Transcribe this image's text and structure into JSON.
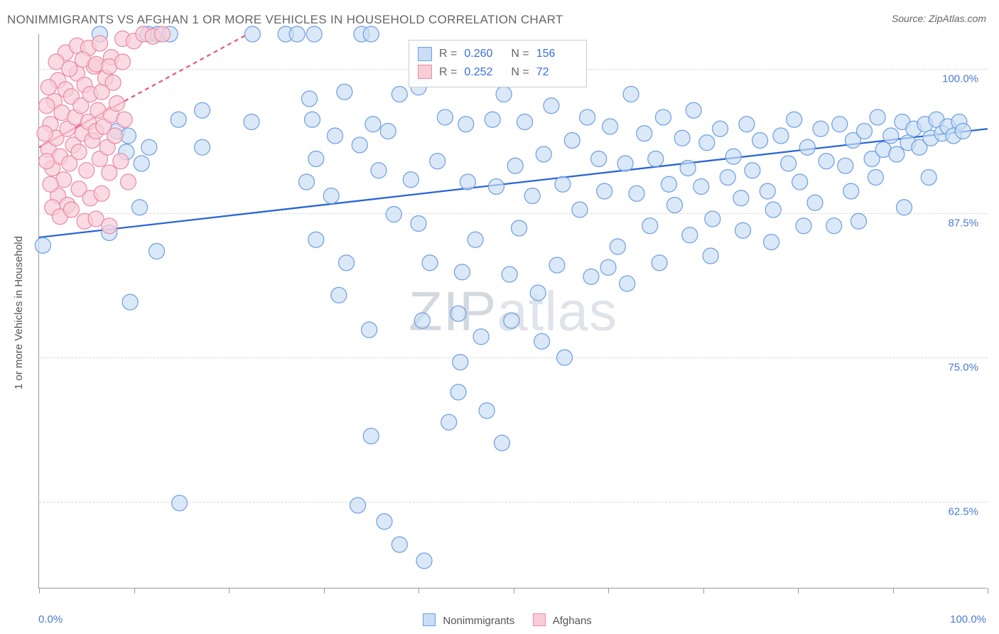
{
  "title": "NONIMMIGRANTS VS AFGHAN 1 OR MORE VEHICLES IN HOUSEHOLD CORRELATION CHART",
  "source_label": "Source: ",
  "source_name": "ZipAtlas.com",
  "y_axis_title": "1 or more Vehicles in Household",
  "watermark_a": "ZIP",
  "watermark_b": "atlas",
  "chart": {
    "type": "scatter",
    "xlim": [
      0,
      100
    ],
    "ylim": [
      55,
      103
    ],
    "y_ticks": [
      62.5,
      75.0,
      87.5,
      100.0
    ],
    "y_tick_labels": [
      "62.5%",
      "75.0%",
      "87.5%",
      "100.0%"
    ],
    "x_tick_positions": [
      0,
      10,
      20,
      30,
      40,
      50,
      60,
      70,
      80,
      90,
      100
    ],
    "x_left_label": "0.0%",
    "x_right_label": "100.0%",
    "background_color": "#ffffff",
    "grid_color": "#d8d8d8",
    "axis_color": "#999999",
    "label_color": "#4a7bd0",
    "marker_radius": 11,
    "marker_stroke_width": 1.2,
    "series": [
      {
        "name": "Nonimmigrants",
        "fill": "#c9ddf5",
        "stroke": "#6d9fe0",
        "fill_opacity": 0.68,
        "trend": {
          "x1": 0,
          "y1": 85.4,
          "x2": 100,
          "y2": 94.8,
          "color": "#2a66d4",
          "width": 2.3
        },
        "R": "0.260",
        "N": "156",
        "points": [
          [
            0.4,
            84.7
          ],
          [
            6.4,
            103
          ],
          [
            11.5,
            103
          ],
          [
            12.5,
            103
          ],
          [
            13.8,
            103
          ],
          [
            22.5,
            103
          ],
          [
            26,
            103
          ],
          [
            27.2,
            103
          ],
          [
            29,
            103
          ],
          [
            34,
            103
          ],
          [
            35,
            103
          ],
          [
            8.2,
            94.6
          ],
          [
            9.4,
            94.2
          ],
          [
            9.2,
            92.8
          ],
          [
            10.8,
            91.8
          ],
          [
            11.6,
            93.2
          ],
          [
            14.7,
            95.6
          ],
          [
            17.2,
            96.4
          ],
          [
            17.2,
            93.2
          ],
          [
            22.4,
            95.4
          ],
          [
            28.5,
            97.4
          ],
          [
            28.8,
            95.6
          ],
          [
            29.2,
            92.2
          ],
          [
            30.8,
            89.0
          ],
          [
            31.2,
            94.2
          ],
          [
            32.2,
            98.0
          ],
          [
            33.8,
            93.4
          ],
          [
            35.2,
            95.2
          ],
          [
            35.8,
            91.2
          ],
          [
            36.8,
            94.6
          ],
          [
            38.0,
            97.8
          ],
          [
            39.2,
            90.4
          ],
          [
            40.0,
            98.4
          ],
          [
            40.0,
            86.6
          ],
          [
            41.2,
            83.2
          ],
          [
            42.0,
            92.0
          ],
          [
            42.8,
            95.8
          ],
          [
            44.2,
            78.8
          ],
          [
            44.6,
            82.4
          ],
          [
            45.0,
            95.2
          ],
          [
            14.8,
            62.4
          ],
          [
            44.4,
            74.6
          ],
          [
            45.2,
            90.2
          ],
          [
            46.6,
            76.8
          ],
          [
            47.2,
            70.4
          ],
          [
            47.8,
            95.6
          ],
          [
            48.2,
            89.8
          ],
          [
            49.0,
            97.8
          ],
          [
            49.6,
            82.2
          ],
          [
            50.2,
            91.6
          ],
          [
            50.6,
            86.2
          ],
          [
            51.2,
            95.4
          ],
          [
            52.0,
            89.0
          ],
          [
            52.6,
            80.6
          ],
          [
            53.2,
            92.6
          ],
          [
            54.0,
            96.8
          ],
          [
            54.6,
            83.0
          ],
          [
            55.2,
            90.0
          ],
          [
            56.2,
            93.8
          ],
          [
            57.0,
            87.8
          ],
          [
            57.8,
            95.8
          ],
          [
            58.2,
            82.0
          ],
          [
            59.0,
            92.2
          ],
          [
            59.6,
            89.4
          ],
          [
            60.2,
            95.0
          ],
          [
            61.0,
            84.6
          ],
          [
            61.8,
            91.8
          ],
          [
            62.4,
            97.8
          ],
          [
            63.0,
            89.2
          ],
          [
            63.8,
            94.4
          ],
          [
            64.4,
            86.4
          ],
          [
            65.0,
            92.2
          ],
          [
            65.8,
            95.8
          ],
          [
            66.4,
            90.0
          ],
          [
            67.0,
            88.2
          ],
          [
            67.8,
            94.0
          ],
          [
            68.4,
            91.4
          ],
          [
            69.0,
            96.4
          ],
          [
            69.8,
            89.8
          ],
          [
            70.4,
            93.6
          ],
          [
            71.0,
            87.0
          ],
          [
            71.8,
            94.8
          ],
          [
            72.6,
            90.6
          ],
          [
            73.2,
            92.4
          ],
          [
            74.0,
            88.8
          ],
          [
            74.6,
            95.2
          ],
          [
            75.2,
            91.2
          ],
          [
            76.0,
            93.8
          ],
          [
            76.8,
            89.4
          ],
          [
            77.4,
            87.8
          ],
          [
            78.2,
            94.2
          ],
          [
            79.0,
            91.8
          ],
          [
            79.6,
            95.6
          ],
          [
            80.2,
            90.2
          ],
          [
            81.0,
            93.2
          ],
          [
            81.8,
            88.4
          ],
          [
            82.4,
            94.8
          ],
          [
            83.0,
            92.0
          ],
          [
            83.8,
            86.4
          ],
          [
            84.4,
            95.2
          ],
          [
            85.0,
            91.6
          ],
          [
            85.8,
            93.8
          ],
          [
            86.4,
            86.8
          ],
          [
            87.0,
            94.6
          ],
          [
            87.8,
            92.2
          ],
          [
            88.4,
            95.8
          ],
          [
            89.0,
            93.0
          ],
          [
            89.8,
            94.2
          ],
          [
            90.4,
            92.6
          ],
          [
            91.0,
            95.4
          ],
          [
            91.6,
            93.6
          ],
          [
            92.2,
            94.8
          ],
          [
            92.8,
            93.2
          ],
          [
            93.4,
            95.2
          ],
          [
            94.0,
            94.0
          ],
          [
            94.6,
            95.6
          ],
          [
            95.2,
            94.4
          ],
          [
            95.8,
            95.0
          ],
          [
            96.4,
            94.2
          ],
          [
            97.0,
            95.4
          ],
          [
            97.4,
            94.6
          ],
          [
            36.4,
            60.8
          ],
          [
            38.0,
            58.8
          ],
          [
            40.6,
            57.4
          ],
          [
            33.6,
            62.2
          ],
          [
            35.0,
            68.2
          ],
          [
            29.2,
            85.2
          ],
          [
            55.4,
            75.0
          ],
          [
            70.8,
            83.8
          ],
          [
            62.0,
            81.4
          ],
          [
            85.6,
            89.4
          ],
          [
            88.2,
            90.6
          ],
          [
            34.8,
            77.4
          ],
          [
            44.2,
            72.0
          ],
          [
            48.8,
            67.6
          ],
          [
            49.8,
            78.2
          ],
          [
            53.0,
            76.4
          ],
          [
            32.4,
            83.2
          ],
          [
            37.4,
            87.4
          ],
          [
            43.2,
            69.4
          ],
          [
            40.4,
            78.2
          ],
          [
            91.2,
            88.0
          ],
          [
            93.8,
            90.6
          ],
          [
            80.6,
            86.4
          ],
          [
            74.2,
            86.0
          ],
          [
            77.2,
            85.0
          ],
          [
            10.6,
            88.0
          ],
          [
            7.4,
            85.8
          ],
          [
            9.6,
            79.8
          ],
          [
            12.4,
            84.2
          ],
          [
            28.2,
            90.2
          ],
          [
            31.6,
            80.4
          ],
          [
            46.0,
            85.2
          ],
          [
            60.0,
            82.8
          ],
          [
            65.4,
            83.2
          ],
          [
            68.6,
            85.6
          ]
        ]
      },
      {
        "name": "Afghans",
        "fill": "#f8cdd8",
        "stroke": "#e98aa6",
        "fill_opacity": 0.72,
        "trend": {
          "x1": 0,
          "y1": 93.2,
          "x2": 22,
          "y2": 103.0,
          "color": "#e85a86",
          "width": 2.3,
          "dash_ext": {
            "x1": 9,
            "y1": 97.2,
            "x2": 22,
            "y2": 103.0
          }
        },
        "R": "0.252",
        "N": "72",
        "points": [
          [
            1.0,
            93.0
          ],
          [
            1.2,
            95.2
          ],
          [
            1.4,
            91.4
          ],
          [
            1.6,
            97.2
          ],
          [
            1.8,
            94.0
          ],
          [
            2.0,
            99.0
          ],
          [
            2.2,
            92.4
          ],
          [
            2.4,
            96.2
          ],
          [
            2.6,
            90.4
          ],
          [
            2.8,
            98.2
          ],
          [
            3.0,
            94.8
          ],
          [
            3.2,
            91.8
          ],
          [
            3.4,
            97.6
          ],
          [
            3.6,
            93.4
          ],
          [
            3.8,
            95.8
          ],
          [
            4.0,
            99.6
          ],
          [
            4.2,
            92.8
          ],
          [
            4.4,
            96.8
          ],
          [
            4.6,
            94.4
          ],
          [
            4.8,
            98.6
          ],
          [
            5.0,
            91.2
          ],
          [
            5.2,
            95.4
          ],
          [
            5.4,
            97.8
          ],
          [
            5.6,
            93.8
          ],
          [
            5.8,
            100.2
          ],
          [
            6.0,
            94.6
          ],
          [
            6.2,
            96.4
          ],
          [
            6.4,
            92.2
          ],
          [
            6.6,
            98.0
          ],
          [
            6.8,
            95.0
          ],
          [
            7.0,
            99.2
          ],
          [
            7.2,
            93.2
          ],
          [
            7.4,
            91.0
          ],
          [
            7.6,
            96.0
          ],
          [
            7.8,
            98.8
          ],
          [
            8.0,
            94.2
          ],
          [
            8.2,
            97.0
          ],
          [
            8.6,
            92.0
          ],
          [
            9.0,
            95.6
          ],
          [
            9.4,
            90.2
          ],
          [
            2.0,
            89.0
          ],
          [
            3.0,
            88.2
          ],
          [
            4.2,
            89.6
          ],
          [
            5.4,
            88.8
          ],
          [
            6.6,
            89.2
          ],
          [
            2.8,
            101.4
          ],
          [
            4.0,
            102.0
          ],
          [
            5.2,
            101.8
          ],
          [
            6.4,
            102.2
          ],
          [
            7.6,
            101.0
          ],
          [
            8.8,
            102.6
          ],
          [
            10.0,
            102.4
          ],
          [
            11.0,
            103.0
          ],
          [
            12.0,
            102.8
          ],
          [
            13.0,
            103.0
          ],
          [
            1.4,
            88.0
          ],
          [
            2.2,
            87.2
          ],
          [
            3.4,
            87.8
          ],
          [
            4.8,
            86.8
          ],
          [
            6.0,
            87.0
          ],
          [
            7.4,
            86.4
          ],
          [
            1.8,
            100.6
          ],
          [
            3.2,
            100.0
          ],
          [
            4.6,
            100.8
          ],
          [
            6.0,
            100.4
          ],
          [
            7.4,
            100.2
          ],
          [
            8.8,
            100.6
          ],
          [
            0.8,
            96.8
          ],
          [
            0.6,
            94.4
          ],
          [
            1.0,
            98.4
          ],
          [
            1.2,
            90.0
          ],
          [
            0.8,
            92.0
          ]
        ]
      }
    ],
    "legend": [
      {
        "label": "Nonimmigrants",
        "fill": "#c9ddf5",
        "stroke": "#6d9fe0"
      },
      {
        "label": "Afghans",
        "fill": "#f8cdd8",
        "stroke": "#e98aa6"
      }
    ],
    "stats_labels": {
      "R": "R =",
      "N": "N ="
    }
  }
}
